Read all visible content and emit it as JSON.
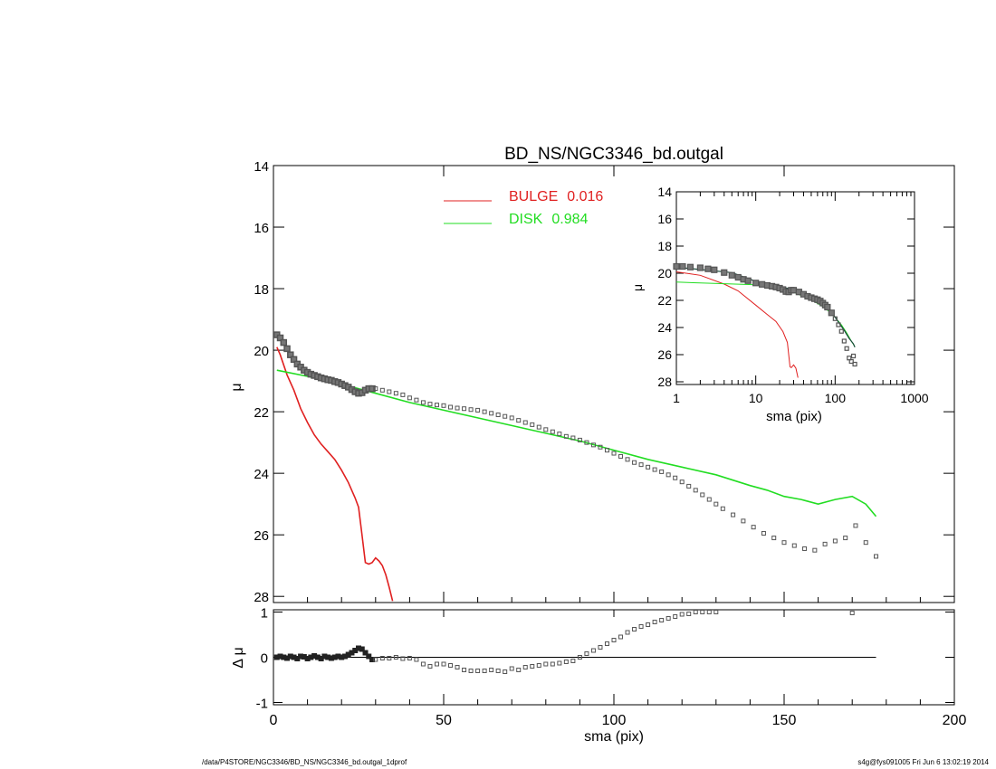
{
  "chart_data": [
    {
      "id": "main",
      "type": "line",
      "title": "BD_NS/NGC3346_bd.outgal",
      "xlabel": "",
      "ylabel": "μ",
      "xlim": [
        0,
        200
      ],
      "ylim": [
        28.2,
        14
      ],
      "yticks": [
        14,
        16,
        18,
        20,
        22,
        24,
        26,
        28
      ],
      "colors": {
        "bulge": "#e02020",
        "disk": "#22dd22",
        "data": "#555555",
        "axis": "#000000"
      },
      "legend": [
        {
          "label": "BULGE",
          "value": "0.016",
          "color": "#e02020"
        },
        {
          "label": "DISK",
          "value": "0.984",
          "color": "#22dd22"
        }
      ],
      "series": [
        {
          "name": "BULGE",
          "style": "line",
          "color": "#e02020",
          "x": [
            1,
            2,
            4,
            6,
            8,
            10,
            12,
            14,
            16,
            18,
            20,
            22,
            24,
            25,
            26,
            27,
            28,
            29,
            30,
            31,
            32,
            33,
            34,
            35
          ],
          "y": [
            19.9,
            20.15,
            20.8,
            21.3,
            21.9,
            22.35,
            22.75,
            23.05,
            23.3,
            23.55,
            23.9,
            24.3,
            24.8,
            25.1,
            26.0,
            26.9,
            26.95,
            26.9,
            26.75,
            26.85,
            27.0,
            27.3,
            27.7,
            28.15
          ]
        },
        {
          "name": "DISK",
          "style": "line",
          "color": "#22dd22",
          "x": [
            1,
            10,
            20,
            30,
            40,
            50,
            60,
            70,
            80,
            90,
            100,
            110,
            120,
            130,
            140,
            145,
            150,
            155,
            160,
            165,
            170,
            174,
            177
          ],
          "y": [
            20.65,
            20.85,
            21.1,
            21.4,
            21.7,
            21.95,
            22.2,
            22.45,
            22.7,
            22.95,
            23.25,
            23.55,
            23.8,
            24.05,
            24.4,
            24.55,
            24.75,
            24.85,
            25.0,
            24.85,
            24.75,
            25.0,
            25.4
          ]
        },
        {
          "name": "data",
          "style": "squares",
          "color": "#555555",
          "x": [
            1,
            2,
            3,
            4,
            5,
            6,
            7,
            8,
            9,
            10,
            11,
            12,
            13,
            14,
            15,
            16,
            17,
            18,
            19,
            20,
            21,
            22,
            23,
            24,
            25,
            26,
            27,
            28,
            29,
            30,
            32,
            34,
            36,
            38,
            40,
            42,
            44,
            46,
            48,
            50,
            52,
            54,
            56,
            58,
            60,
            62,
            64,
            66,
            68,
            70,
            72,
            74,
            76,
            78,
            80,
            82,
            84,
            86,
            88,
            90,
            92,
            94,
            96,
            98,
            100,
            102,
            104,
            106,
            108,
            110,
            112,
            114,
            116,
            118,
            120,
            122,
            124,
            126,
            128,
            130,
            132,
            135,
            138,
            141,
            144,
            147,
            150,
            153,
            156,
            159,
            162,
            165,
            168,
            171,
            174,
            177
          ],
          "y": [
            19.5,
            19.6,
            19.75,
            19.95,
            20.15,
            20.3,
            20.45,
            20.55,
            20.65,
            20.72,
            20.78,
            20.82,
            20.86,
            20.9,
            20.93,
            20.96,
            20.98,
            21.02,
            21.05,
            21.1,
            21.15,
            21.2,
            21.28,
            21.35,
            21.4,
            21.38,
            21.3,
            21.25,
            21.25,
            21.25,
            21.3,
            21.35,
            21.4,
            21.45,
            21.55,
            21.62,
            21.7,
            21.75,
            21.78,
            21.8,
            21.85,
            21.88,
            21.9,
            21.93,
            21.95,
            22.0,
            22.05,
            22.1,
            22.15,
            22.2,
            22.28,
            22.35,
            22.42,
            22.5,
            22.58,
            22.65,
            22.72,
            22.8,
            22.85,
            22.92,
            23.0,
            23.08,
            23.15,
            23.25,
            23.35,
            23.45,
            23.55,
            23.65,
            23.72,
            23.8,
            23.88,
            23.95,
            24.05,
            24.15,
            24.28,
            24.42,
            24.55,
            24.7,
            24.85,
            25.0,
            25.15,
            25.35,
            25.55,
            25.75,
            25.95,
            26.1,
            26.25,
            26.35,
            26.45,
            26.5,
            26.3,
            26.2,
            26.1,
            25.7,
            26.25,
            26.7
          ]
        }
      ]
    },
    {
      "id": "inset",
      "type": "line",
      "xscale": "log",
      "xlabel": "sma (pix)",
      "ylabel": "μ",
      "xlim": [
        1,
        1000
      ],
      "ylim": [
        28.2,
        14
      ],
      "xticks": [
        1,
        10,
        100,
        1000
      ],
      "yticks": [
        14,
        16,
        18,
        20,
        22,
        24,
        26,
        28
      ],
      "series": [
        {
          "name": "BULGE",
          "style": "line",
          "color": "#e02020",
          "x": [
            1,
            2,
            4,
            6,
            10,
            14,
            18,
            22,
            25,
            27,
            28,
            30,
            32,
            34
          ],
          "y": [
            19.9,
            20.15,
            20.8,
            21.3,
            22.35,
            23.05,
            23.55,
            24.3,
            25.1,
            26.9,
            26.95,
            26.75,
            27.0,
            27.7
          ]
        },
        {
          "name": "DISK",
          "style": "line",
          "color": "#22dd22",
          "x": [
            1,
            10,
            20,
            30,
            50,
            70,
            90,
            100,
            120,
            140,
            160,
            177
          ],
          "y": [
            20.65,
            20.85,
            21.1,
            21.4,
            21.95,
            22.45,
            22.95,
            23.25,
            23.8,
            24.4,
            25.0,
            25.4
          ]
        },
        {
          "name": "model",
          "style": "line",
          "color": "#1a4a3a",
          "x": [
            1,
            5,
            10,
            20,
            30,
            50,
            70,
            90,
            110,
            130,
            150,
            170,
            177
          ],
          "y": [
            19.55,
            19.95,
            20.6,
            21.0,
            21.2,
            21.75,
            22.15,
            22.85,
            23.6,
            24.2,
            24.8,
            25.2,
            25.45
          ]
        },
        {
          "name": "data",
          "style": "squares",
          "color": "#555555",
          "x": [
            1,
            1.2,
            1.5,
            2,
            2.5,
            3,
            4,
            5,
            6,
            7,
            8,
            10,
            12,
            14,
            16,
            18,
            20,
            22,
            24,
            26,
            28,
            30,
            35,
            40,
            45,
            50,
            55,
            60,
            65,
            70,
            75,
            80,
            90,
            100,
            110,
            120,
            130,
            140,
            150,
            160,
            170,
            177
          ],
          "y": [
            19.5,
            19.5,
            19.55,
            19.6,
            19.68,
            19.75,
            19.95,
            20.15,
            20.3,
            20.45,
            20.55,
            20.72,
            20.82,
            20.9,
            20.96,
            21.02,
            21.1,
            21.2,
            21.35,
            21.38,
            21.25,
            21.25,
            21.38,
            21.55,
            21.7,
            21.8,
            21.88,
            21.95,
            22.05,
            22.2,
            22.35,
            22.5,
            22.92,
            23.35,
            23.8,
            24.28,
            25.0,
            25.55,
            26.25,
            26.5,
            26.1,
            26.7
          ]
        }
      ]
    },
    {
      "id": "residual",
      "type": "scatter",
      "xlabel": "sma (pix)",
      "ylabel": "Δ μ",
      "xlim": [
        0,
        200
      ],
      "ylim": [
        -1.05,
        1.05
      ],
      "xticks": [
        0,
        50,
        100,
        150,
        200
      ],
      "yticks": [
        -1,
        0,
        1
      ],
      "series": [
        {
          "name": "residual",
          "style": "squares",
          "color": "#555555",
          "x": [
            1,
            2,
            3,
            4,
            5,
            6,
            7,
            8,
            9,
            10,
            11,
            12,
            13,
            14,
            15,
            16,
            17,
            18,
            19,
            20,
            21,
            22,
            23,
            24,
            25,
            26,
            27,
            28,
            29,
            30,
            32,
            34,
            36,
            38,
            40,
            42,
            44,
            46,
            48,
            50,
            52,
            54,
            56,
            58,
            60,
            62,
            64,
            66,
            68,
            70,
            72,
            74,
            76,
            78,
            80,
            82,
            84,
            86,
            88,
            90,
            92,
            94,
            96,
            98,
            100,
            102,
            104,
            106,
            108,
            110,
            112,
            114,
            116,
            118,
            120,
            122,
            124,
            126,
            128,
            130,
            170
          ],
          "y": [
            0.0,
            0.02,
            0.0,
            -0.02,
            0.02,
            0.0,
            -0.03,
            0.02,
            0.01,
            -0.03,
            0.0,
            0.03,
            0.0,
            -0.03,
            0.02,
            0.0,
            -0.02,
            0.0,
            0.02,
            0.0,
            0.02,
            0.06,
            0.1,
            0.15,
            0.2,
            0.18,
            0.1,
            0.02,
            -0.05,
            -0.05,
            -0.02,
            -0.02,
            0.0,
            -0.03,
            -0.02,
            -0.05,
            -0.15,
            -0.2,
            -0.15,
            -0.15,
            -0.18,
            -0.22,
            -0.28,
            -0.3,
            -0.3,
            -0.3,
            -0.28,
            -0.3,
            -0.32,
            -0.25,
            -0.28,
            -0.22,
            -0.2,
            -0.18,
            -0.15,
            -0.15,
            -0.13,
            -0.1,
            -0.08,
            0.0,
            0.08,
            0.15,
            0.22,
            0.3,
            0.38,
            0.45,
            0.55,
            0.62,
            0.68,
            0.72,
            0.78,
            0.82,
            0.86,
            0.9,
            0.95,
            0.96,
            1.0,
            1.0,
            1.0,
            1.0,
            0.98
          ]
        }
      ]
    }
  ],
  "footer": {
    "left": "/data/P4STORE/NGC3346/BD_NS/NGC3346_bd.outgal_1dprof",
    "right": "s4g@fys091005  Fri Jun  6 13:02:19 2014"
  }
}
